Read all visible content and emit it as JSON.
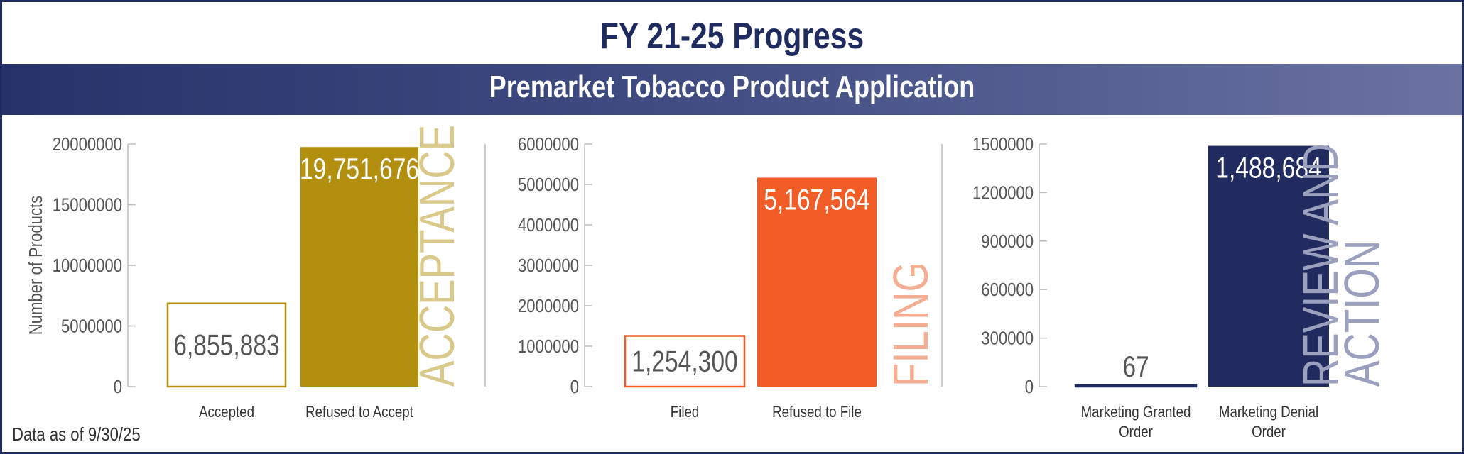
{
  "header": {
    "title": "FY 21-25 Progress",
    "subtitle": "Premarket Tobacco Product Application"
  },
  "footnote": "Data as of 9/30/25",
  "colors": {
    "navy": "#1f2a5e",
    "gold": "#b38f0f",
    "gold_light": "#d9c98a",
    "orange": "#f25c27",
    "orange_light": "#f5ae93",
    "navy_bar": "#222b60",
    "navy_light": "#9aa0bd"
  },
  "chart_data": [
    {
      "type": "bar",
      "section_label": "ACCEPTANCE",
      "ylabel": "Number of Products",
      "ylim": [
        0,
        20000000
      ],
      "yticks": [
        "0",
        "5000000",
        "10000000",
        "15000000",
        "20000000"
      ],
      "categories": [
        "Accepted",
        "Refused to Accept"
      ],
      "values": [
        6855883,
        19751676
      ],
      "value_labels": [
        "6,855,883",
        "19,751,676"
      ],
      "styles": [
        "outline",
        "filled"
      ]
    },
    {
      "type": "bar",
      "section_label": "FILING",
      "ylabel": "",
      "ylim": [
        0,
        6000000
      ],
      "yticks": [
        "0",
        "1000000",
        "2000000",
        "3000000",
        "4000000",
        "5000000",
        "6000000"
      ],
      "categories": [
        "Filed",
        "Refused to File"
      ],
      "values": [
        1254300,
        5167564
      ],
      "value_labels": [
        "1,254,300",
        "5,167,564"
      ],
      "styles": [
        "outline",
        "filled"
      ]
    },
    {
      "type": "bar",
      "section_label": "REVIEW AND ACTION",
      "section_label_lines": [
        "REVIEW AND",
        "ACTION"
      ],
      "ylabel": "",
      "ylim": [
        0,
        1500000
      ],
      "yticks": [
        "0",
        "300000",
        "600000",
        "900000",
        "1200000",
        "1500000"
      ],
      "categories": [
        "Marketing Granted Order",
        "Marketing Denial Order"
      ],
      "category_lines": [
        [
          "Marketing Granted",
          "Order"
        ],
        [
          "Marketing Denial",
          "Order"
        ]
      ],
      "values": [
        67,
        1488684
      ],
      "value_labels": [
        "67",
        "1,488,684"
      ],
      "styles": [
        "outline",
        "filled"
      ]
    }
  ]
}
